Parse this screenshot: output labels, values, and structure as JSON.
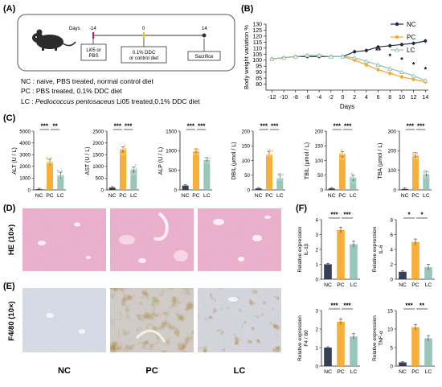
{
  "colors": {
    "nc": "#1f2a44",
    "pc": "#f5a623",
    "lc": "#8fbfb3",
    "axis": "#222222",
    "he_bg": "#e8a3c2",
    "f480_bg": "#d4dae3"
  },
  "panel_labels": {
    "A": "(A)",
    "B": "(B)",
    "C": "(C)",
    "D": "(D)",
    "E": "(E)",
    "F": "(F)"
  },
  "panel_a": {
    "days_label": "Days",
    "tick_start": "-14",
    "tick_mid": "0",
    "tick_end": "14",
    "box_left": [
      "Li05 or",
      "PBS"
    ],
    "box_mid": [
      "0.1% DDC",
      "or control diet"
    ],
    "box_right": "Sacrifice",
    "legend_nc": "NC : naive, PBS treated, normal control diet",
    "legend_pc": "PC : PBS treated, 0.1% DDC diet",
    "legend_lc_prefix": "LC : ",
    "legend_lc_italic": "Pediococcus pentosaceus",
    "legend_lc_suffix": " Li05 treated,0.1% DDC diet"
  },
  "chart_data": [
    {
      "panel": "B",
      "type": "line",
      "ylabel": "Body weight variation %",
      "xlabel": "Days",
      "x": [
        -12,
        -10,
        -8,
        -6,
        -4,
        -2,
        0,
        2,
        4,
        6,
        8,
        10,
        12,
        14
      ],
      "xlim": [
        -13,
        14.5
      ],
      "ylim": [
        75,
        130
      ],
      "yticks": [
        80,
        85,
        90,
        95,
        100,
        105,
        110,
        115,
        120,
        125,
        130
      ],
      "series": [
        {
          "name": "NC",
          "values": [
            101,
            102,
            103,
            103,
            103,
            103,
            103,
            107,
            108,
            111,
            112,
            113,
            114,
            116
          ]
        },
        {
          "name": "PC",
          "values": [
            101,
            102,
            103,
            104,
            104,
            103,
            103,
            100,
            96,
            92,
            89,
            86,
            84,
            82
          ]
        },
        {
          "name": "LC",
          "values": [
            101,
            102,
            103,
            104,
            104,
            103,
            103,
            102,
            99,
            96,
            93,
            90,
            87,
            83
          ]
        }
      ],
      "annotations": [
        {
          "x": 6,
          "y": 106,
          "text": "**"
        },
        {
          "x": 8,
          "y": 101,
          "text": "*"
        },
        {
          "x": 10,
          "y": 98,
          "text": "*"
        },
        {
          "x": 12,
          "y": 94,
          "text": "*"
        },
        {
          "x": 14,
          "y": 90,
          "text": "*"
        }
      ]
    },
    {
      "panel": "C",
      "type": "bar",
      "ylabel": "ALT (U / L)",
      "categories": [
        "NC",
        "PC",
        "LC"
      ],
      "values": [
        60,
        2350,
        1250
      ],
      "ylim": [
        0,
        5000
      ],
      "yticks": [
        0,
        1000,
        2000,
        3000,
        4000,
        5000
      ],
      "sig": [
        "***",
        "**"
      ]
    },
    {
      "panel": "C",
      "type": "bar",
      "ylabel": "AST (U / L)",
      "categories": [
        "NC",
        "PC",
        "LC"
      ],
      "values": [
        100,
        1700,
        850
      ],
      "ylim": [
        0,
        2500
      ],
      "yticks": [
        0,
        500,
        1000,
        1500,
        2000,
        2500
      ],
      "sig": [
        "***",
        "***"
      ]
    },
    {
      "panel": "C",
      "type": "bar",
      "ylabel": "ALP (U / L)",
      "categories": [
        "NC",
        "PC",
        "LC"
      ],
      "values": [
        110,
        980,
        760
      ],
      "ylim": [
        0,
        1500
      ],
      "yticks": [
        0,
        500,
        1000,
        1500
      ],
      "sig": [
        "***",
        "***"
      ]
    },
    {
      "panel": "C",
      "type": "bar",
      "ylabel": "DBIL (μmol / L)",
      "categories": [
        "NC",
        "PC",
        "LC"
      ],
      "values": [
        5,
        120,
        40
      ],
      "ylim": [
        0,
        200
      ],
      "yticks": [
        0,
        50,
        100,
        150,
        200
      ],
      "sig": [
        "***",
        "***"
      ]
    },
    {
      "panel": "C",
      "type": "bar",
      "ylabel": "TBIL (μmol / L)",
      "categories": [
        "NC",
        "PC",
        "LC"
      ],
      "values": [
        5,
        120,
        40
      ],
      "ylim": [
        0,
        200
      ],
      "yticks": [
        0,
        50,
        100,
        150,
        200
      ],
      "sig": [
        "***",
        "***"
      ]
    },
    {
      "panel": "C",
      "type": "bar",
      "ylabel": "TBA (μmol / L)",
      "categories": [
        "NC",
        "PC",
        "LC"
      ],
      "values": [
        5,
        175,
        80
      ],
      "ylim": [
        0,
        300
      ],
      "yticks": [
        0,
        100,
        200,
        300
      ],
      "sig": [
        "***",
        "***"
      ]
    },
    {
      "panel": "F",
      "type": "bar",
      "ylabel": "Relative expression IL-1β",
      "categories": [
        "NC",
        "PC",
        "LC"
      ],
      "values": [
        1.0,
        3.3,
        2.35
      ],
      "ylim": [
        0,
        4
      ],
      "yticks": [
        0,
        1,
        2,
        3,
        4
      ],
      "sig": [
        "***",
        "***"
      ]
    },
    {
      "panel": "F",
      "type": "bar",
      "ylabel": "Relative expression IL-6",
      "categories": [
        "NC",
        "PC",
        "LC"
      ],
      "values": [
        1.0,
        5.0,
        1.6
      ],
      "ylim": [
        0,
        8
      ],
      "yticks": [
        0,
        2,
        4,
        6,
        8
      ],
      "sig": [
        "*",
        "*"
      ]
    },
    {
      "panel": "F",
      "type": "bar",
      "ylabel": "Relative expression F4 / 80",
      "categories": [
        "NC",
        "PC",
        "LC"
      ],
      "values": [
        1.0,
        2.4,
        1.6
      ],
      "ylim": [
        0,
        3
      ],
      "yticks": [
        0,
        1,
        2,
        3
      ],
      "sig": [
        "***",
        "***"
      ]
    },
    {
      "panel": "F",
      "type": "bar",
      "ylabel": "Relative expression TNF-α",
      "categories": [
        "NC",
        "PC",
        "LC"
      ],
      "values": [
        1.0,
        10.5,
        7.5
      ],
      "ylim": [
        0,
        15
      ],
      "yticks": [
        0,
        5,
        10,
        15
      ],
      "sig": [
        "***",
        "**"
      ]
    }
  ],
  "histology": {
    "row_labels": [
      "HE (10×)",
      "F4/80 (10×)"
    ],
    "col_labels": [
      "NC",
      "PC",
      "LC"
    ]
  }
}
